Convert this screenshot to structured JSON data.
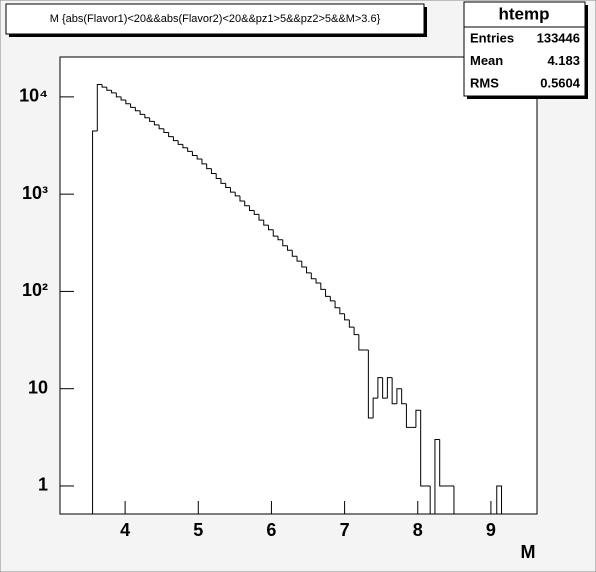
{
  "chart_data": {
    "type": "histogram",
    "title": "M {abs(Flavor1)<20&&abs(Flavor2)<20&&pz1>5&&pz2>5&&M>3.6}",
    "x_label": "M",
    "log_y": true,
    "color": "#000000",
    "bins": [
      3.555,
      3.62,
      3.685,
      3.75,
      3.815,
      3.88,
      3.945,
      4.01,
      4.075,
      4.14,
      4.205,
      4.27,
      4.335,
      4.4,
      4.465,
      4.53,
      4.595,
      4.66,
      4.725,
      4.79,
      4.855,
      4.92,
      4.985,
      5.05,
      5.115,
      5.18,
      5.245,
      5.31,
      5.375,
      5.44,
      5.505,
      5.57,
      5.635,
      5.7,
      5.765,
      5.83,
      5.895,
      5.96,
      6.025,
      6.09,
      6.155,
      6.22,
      6.285,
      6.35,
      6.415,
      6.48,
      6.545,
      6.61,
      6.675,
      6.74,
      6.805,
      6.87,
      6.935,
      7.0,
      7.065,
      7.13,
      7.195,
      7.26,
      7.325,
      7.39,
      7.455,
      7.52,
      7.585,
      7.65,
      7.715,
      7.78,
      7.845,
      7.91,
      7.975,
      8.04,
      8.105,
      8.17,
      8.235,
      8.3,
      8.365,
      8.43,
      8.495,
      8.56,
      8.625,
      8.69,
      8.755,
      8.82,
      8.885,
      8.95,
      9.015,
      9.08,
      9.145
    ],
    "values": [
      4460,
      13400,
      12600,
      11700,
      11000,
      10000,
      9300,
      8500,
      7800,
      7200,
      6600,
      6100,
      5600,
      5150,
      4700,
      4300,
      3900,
      3550,
      3250,
      3000,
      2750,
      2500,
      2300,
      2050,
      1830,
      1630,
      1450,
      1290,
      1170,
      1050,
      960,
      850,
      760,
      680,
      620,
      540,
      480,
      430,
      370,
      340,
      295,
      265,
      230,
      205,
      178,
      155,
      135,
      122,
      105,
      89,
      80,
      68,
      59,
      51,
      43,
      36,
      25,
      25,
      5,
      8,
      13,
      8,
      13,
      7,
      10,
      7,
      4,
      4,
      6,
      1,
      1,
      0,
      3,
      1,
      1,
      1,
      0,
      0,
      0,
      0,
      0,
      0,
      0,
      0,
      0,
      1
    ],
    "xlim": [
      3.11,
      9.63
    ],
    "ylim": [
      0.515,
      25700
    ],
    "xticks": [
      4,
      5,
      6,
      7,
      8,
      9
    ],
    "yticks": [
      1,
      10,
      {
        "value": 100,
        "label": "10²"
      },
      {
        "value": 1000,
        "label": "10³"
      },
      {
        "value": 10000,
        "label": "10⁴"
      }
    ],
    "stats": {
      "title": "htemp",
      "rows": [
        [
          "Entries",
          "133446"
        ],
        [
          "Mean",
          "4.183"
        ],
        [
          "RMS",
          "0.5604"
        ]
      ]
    }
  }
}
